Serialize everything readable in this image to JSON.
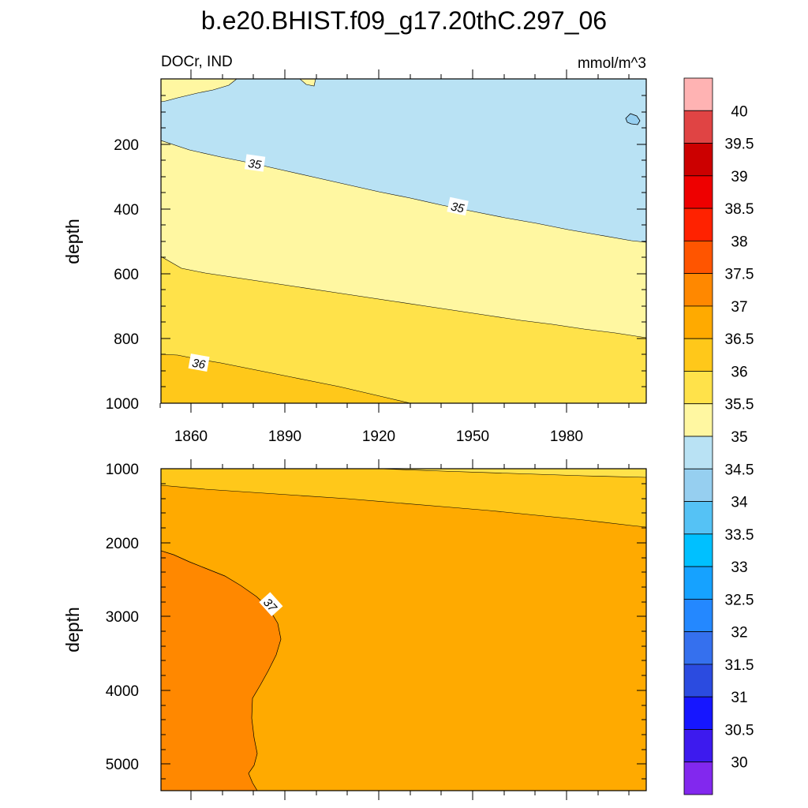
{
  "page": {
    "title": "b.e20.BHIST.f09_g17.20thC.297_06",
    "subtitle_left": "DOCr, IND",
    "subtitle_right": "mmol/m^3"
  },
  "chart_data": [
    {
      "type": "contour",
      "panel": "upper",
      "x_ticks": [
        1860,
        1890,
        1920,
        1950,
        1980
      ],
      "xlim": [
        1850,
        2005
      ],
      "ylabel": "depth",
      "y_ticks": [
        200,
        400,
        600,
        800,
        1000
      ],
      "ylim": [
        0,
        1000
      ],
      "y_inverted": true,
      "contour_labels": [
        {
          "text": "35",
          "x": 1879,
          "y": 262
        },
        {
          "text": "35",
          "x": 1945,
          "y": 400
        },
        {
          "text": "36",
          "x": 1862,
          "y": 880
        }
      ],
      "regions": [
        {
          "range": "34.5-35",
          "color": "#b9e2f4"
        },
        {
          "range": "35-35.5",
          "color": "#fff7a1"
        },
        {
          "range": "35.5-36",
          "color": "#ffe24a"
        },
        {
          "range": "36-36.5",
          "color": "#ffc81a"
        }
      ]
    },
    {
      "type": "contour",
      "panel": "lower",
      "ylabel": "depth",
      "y_ticks": [
        1000,
        2000,
        3000,
        4000,
        5000
      ],
      "ylim": [
        1000,
        5375
      ],
      "y_inverted": true,
      "contour_labels": [
        {
          "text": "37",
          "x": 1884,
          "y": 2900
        }
      ],
      "regions": [
        {
          "range": "35.5-36",
          "color": "#ffe24a"
        },
        {
          "range": "36-36.5",
          "color": "#ffc81a"
        },
        {
          "range": "36.5-37",
          "color": "#ffaa00"
        },
        {
          "range": "37-37.5",
          "color": "#ff8800"
        }
      ]
    }
  ],
  "colorbar": {
    "labels": [
      "40",
      "39.5",
      "39",
      "38.5",
      "38",
      "37.5",
      "37",
      "36.5",
      "36",
      "35.5",
      "35",
      "34.5",
      "34",
      "33.5",
      "33",
      "32.5",
      "32",
      "31.5",
      "31",
      "30.5",
      "30"
    ],
    "colors": [
      "#ffb3b3",
      "#e04444",
      "#cc0000",
      "#ee0000",
      "#ff2200",
      "#ff5500",
      "#ff8800",
      "#ffaa00",
      "#ffc81a",
      "#ffe24a",
      "#fff7a1",
      "#b9e2f4",
      "#96cff0",
      "#55c2f5",
      "#00c0ff",
      "#16a2ff",
      "#2488ff",
      "#3570ee",
      "#2b4be0",
      "#1616ff",
      "#3d1aee",
      "#8228ee"
    ]
  }
}
